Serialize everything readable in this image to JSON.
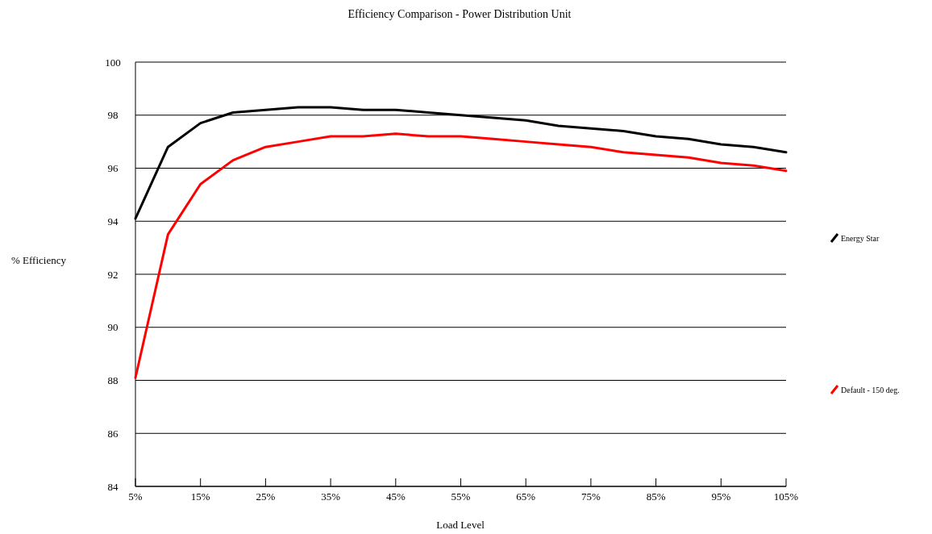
{
  "chart_data": {
    "type": "line",
    "title": "Efficiency Comparison - Power Distribution Unit",
    "xlabel": "Load Level",
    "ylabel": "% Efficiency",
    "x": [
      5,
      10,
      15,
      20,
      25,
      30,
      35,
      40,
      45,
      50,
      55,
      60,
      65,
      70,
      75,
      80,
      85,
      90,
      95,
      100,
      105
    ],
    "xlim": [
      5,
      105
    ],
    "xticks": [
      {
        "value": 5,
        "label": "5%"
      },
      {
        "value": 15,
        "label": "15%"
      },
      {
        "value": 25,
        "label": "25%"
      },
      {
        "value": 35,
        "label": "35%"
      },
      {
        "value": 45,
        "label": "45%"
      },
      {
        "value": 55,
        "label": "55%"
      },
      {
        "value": 65,
        "label": "65%"
      },
      {
        "value": 75,
        "label": "75%"
      },
      {
        "value": 85,
        "label": "85%"
      },
      {
        "value": 95,
        "label": "95%"
      },
      {
        "value": 105,
        "label": "105%"
      }
    ],
    "ylim": [
      84,
      100
    ],
    "yticks": [
      84,
      86,
      88,
      90,
      92,
      94,
      96,
      98,
      100
    ],
    "grid": "y",
    "legend": "right",
    "series": [
      {
        "name": "Energy Star",
        "color": "#000000",
        "values": [
          94.1,
          96.8,
          97.7,
          98.1,
          98.2,
          98.3,
          98.3,
          98.2,
          98.2,
          98.1,
          98.0,
          97.9,
          97.8,
          97.6,
          97.5,
          97.4,
          97.2,
          97.1,
          96.9,
          96.8,
          96.6
        ]
      },
      {
        "name": "Default - 150 deg.",
        "color": "#ff0000",
        "values": [
          88.1,
          93.5,
          95.4,
          96.3,
          96.8,
          97.0,
          97.2,
          97.2,
          97.3,
          97.2,
          97.2,
          97.1,
          97.0,
          96.9,
          96.8,
          96.6,
          96.5,
          96.4,
          96.2,
          96.1,
          95.9
        ]
      }
    ]
  }
}
